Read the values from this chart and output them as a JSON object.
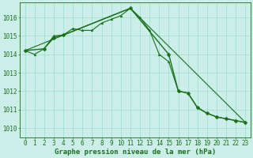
{
  "xlabel": "Graphe pression niveau de la mer (hPa)",
  "ylim": [
    1009.5,
    1016.8
  ],
  "xlim": [
    -0.5,
    23.5
  ],
  "yticks": [
    1010,
    1011,
    1012,
    1013,
    1014,
    1015,
    1016
  ],
  "xticks": [
    0,
    1,
    2,
    3,
    4,
    5,
    6,
    7,
    8,
    9,
    10,
    11,
    12,
    13,
    14,
    15,
    16,
    17,
    18,
    19,
    20,
    21,
    22,
    23
  ],
  "background_color": "#cceee8",
  "grid_color": "#99ddcc",
  "line_color": "#1a6e1a",
  "series1_x": [
    0,
    1,
    2,
    3,
    4,
    5,
    6,
    7,
    8,
    9,
    10,
    11,
    12,
    13,
    14,
    15,
    16,
    17,
    18,
    19,
    20,
    21,
    22,
    23
  ],
  "series1_y": [
    1014.2,
    1014.0,
    1014.3,
    1015.0,
    1015.05,
    1015.4,
    1015.3,
    1015.3,
    1015.7,
    1015.9,
    1016.1,
    1016.5,
    1016.0,
    1015.3,
    1014.0,
    1013.6,
    1012.0,
    1011.9,
    1011.1,
    1010.8,
    1010.6,
    1010.5,
    1010.4,
    1010.3
  ],
  "series2_x": [
    0,
    2,
    3,
    4,
    11,
    15,
    16,
    17,
    18,
    19,
    20,
    21,
    22,
    23
  ],
  "series2_y": [
    1014.2,
    1014.3,
    1014.9,
    1015.05,
    1016.5,
    1014.0,
    1012.0,
    1011.9,
    1011.1,
    1010.8,
    1010.6,
    1010.5,
    1010.4,
    1010.3
  ],
  "series3_x": [
    0,
    11,
    23
  ],
  "series3_y": [
    1014.2,
    1016.5,
    1010.3
  ],
  "tick_fontsize": 5.5,
  "label_fontsize": 6.5
}
